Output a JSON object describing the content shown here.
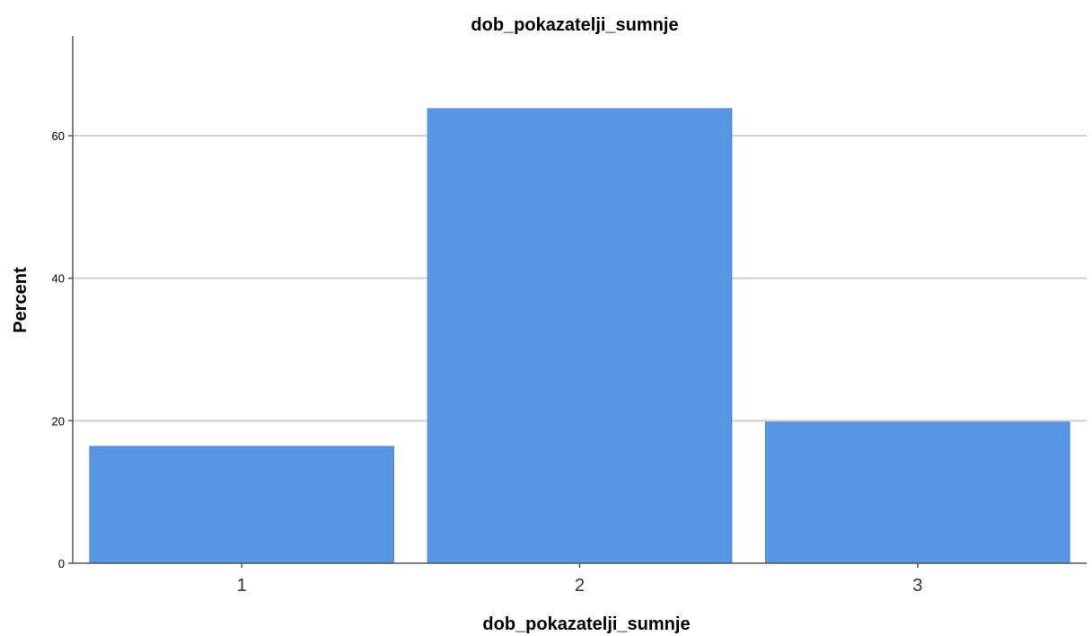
{
  "chart_data": {
    "type": "bar",
    "title": "dob_pokazatelji_sumnje",
    "xlabel": "dob_pokazatelji_sumnje",
    "ylabel": "Percent",
    "categories": [
      "1",
      "2",
      "3"
    ],
    "values": [
      16.4,
      63.8,
      19.8
    ],
    "ylim": [
      0,
      74
    ],
    "yticks": [
      "0",
      "20",
      "40",
      "60"
    ],
    "grid": true,
    "bar_color": "#5597e4"
  }
}
